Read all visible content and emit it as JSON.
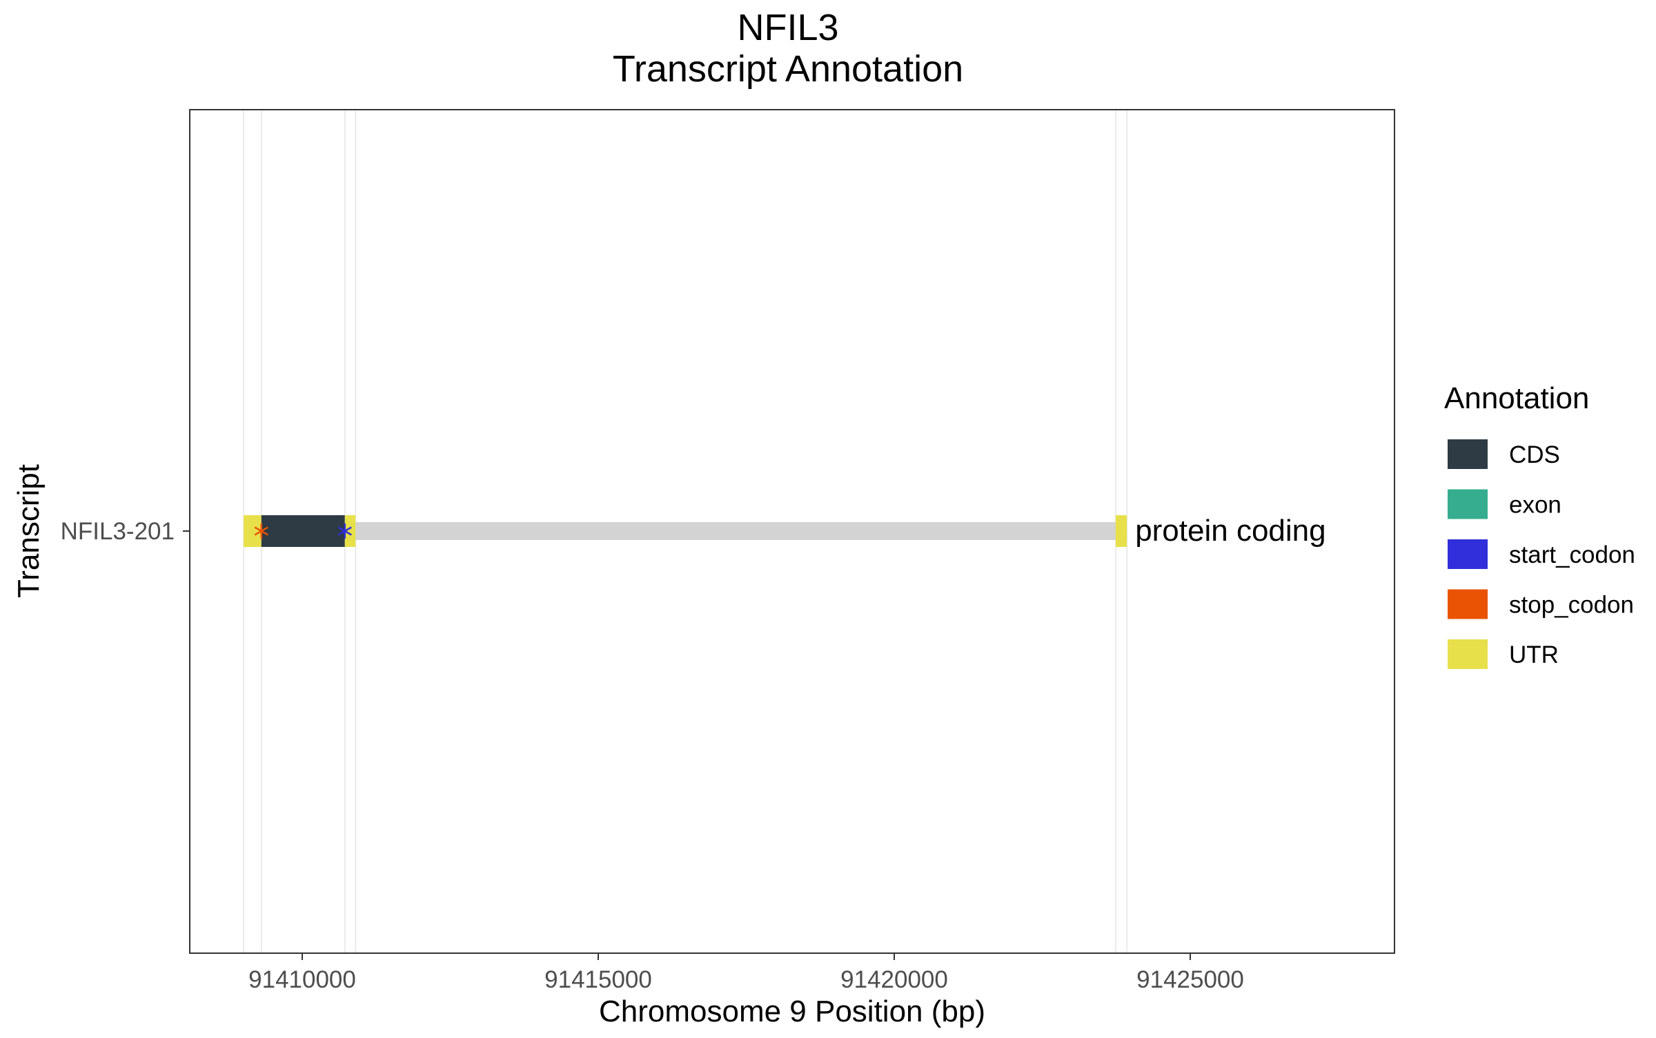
{
  "chart_data": {
    "type": "gene-track",
    "title": "NFIL3",
    "subtitle": "Transcript Annotation",
    "xlabel": "Chromosome 9 Position (bp)",
    "ylabel": "Transcript",
    "xlim": [
      91408100,
      91428450
    ],
    "x_ticks": [
      91410000,
      91415000,
      91420000,
      91425000
    ],
    "x_tick_labels": [
      "91410000",
      "91415000",
      "91420000",
      "91425000"
    ],
    "grid": true,
    "legend_position": "right",
    "legend": {
      "title": "Annotation",
      "items": [
        {
          "label": "CDS",
          "color": "#2e3b45"
        },
        {
          "label": "exon",
          "color": "#35ad8e"
        },
        {
          "label": "start_codon",
          "color": "#2f2fdb"
        },
        {
          "label": "stop_codon",
          "color": "#ea5304"
        },
        {
          "label": "UTR",
          "color": "#e8e04a"
        }
      ]
    },
    "intron_color": "#d3d3d3",
    "transcripts": [
      {
        "name": "NFIL3-201",
        "biotype_label": "protein coding",
        "start": 91409010,
        "end": 91423930,
        "features": [
          {
            "type": "UTR",
            "start": 91409010,
            "end": 91409310
          },
          {
            "type": "CDS",
            "start": 91409310,
            "end": 91410720
          },
          {
            "type": "UTR",
            "start": 91410720,
            "end": 91410900
          },
          {
            "type": "UTR",
            "start": 91423740,
            "end": 91423930
          }
        ],
        "codons": [
          {
            "type": "stop_codon",
            "position": 91409310
          },
          {
            "type": "start_codon",
            "position": 91410720
          }
        ]
      }
    ]
  }
}
